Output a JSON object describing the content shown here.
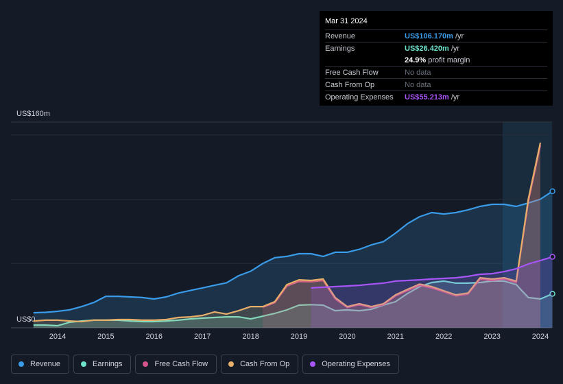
{
  "chart_data": {
    "type": "area",
    "ylim": [
      0,
      160
    ],
    "yticks": [
      {
        "value": 0,
        "label": "US$0"
      },
      {
        "value": 160,
        "label": "US$160m"
      }
    ],
    "ygrid": [
      50,
      100,
      150
    ],
    "xlim": [
      2013.5,
      2024.25
    ],
    "xticks": [
      2014,
      2015,
      2016,
      2017,
      2018,
      2019,
      2020,
      2021,
      2022,
      2023,
      2024
    ],
    "x": [
      2013.5,
      2013.75,
      2014,
      2014.25,
      2014.5,
      2014.75,
      2015,
      2015.25,
      2015.5,
      2015.75,
      2016,
      2016.25,
      2016.5,
      2016.75,
      2017,
      2017.25,
      2017.5,
      2017.75,
      2018,
      2018.25,
      2018.5,
      2018.75,
      2019,
      2019.25,
      2019.5,
      2019.75,
      2020,
      2020.25,
      2020.5,
      2020.75,
      2021,
      2021.25,
      2021.5,
      2021.75,
      2022,
      2022.25,
      2022.5,
      2022.75,
      2023,
      2023.25,
      2023.5,
      2023.75,
      2024,
      2024.25
    ],
    "series": [
      {
        "name": "Revenue",
        "color": "#3a9be8",
        "values": [
          11.7,
          12,
          12.8,
          14,
          16.5,
          19.7,
          24.5,
          24.5,
          24,
          23.5,
          22.4,
          24,
          27,
          29,
          31,
          33,
          35,
          40.5,
          44,
          50,
          54.5,
          55.5,
          57.6,
          57.6,
          55.5,
          58.7,
          58.7,
          61,
          64.5,
          67,
          73.6,
          81,
          86.4,
          89.6,
          88.5,
          89.6,
          91.7,
          94.4,
          96,
          96,
          94.4,
          97,
          100,
          106.17
        ]
      },
      {
        "name": "Earnings",
        "color": "#6de3cc",
        "values": [
          2.1,
          2.1,
          1.6,
          4.3,
          5.3,
          5.9,
          5.9,
          5.9,
          5.3,
          4.8,
          4.8,
          5.3,
          5.9,
          6.9,
          7.5,
          8,
          8.5,
          8.5,
          6.9,
          9,
          11.2,
          13.9,
          17.6,
          18,
          17.6,
          13.3,
          13.9,
          13.3,
          14.4,
          17.6,
          20.3,
          26.7,
          32,
          35.2,
          36.3,
          34.7,
          34.7,
          35.2,
          36.3,
          36.3,
          33.6,
          23.5,
          22.4,
          26.42
        ]
      },
      {
        "name": "Free Cash Flow",
        "color": "#d2548c",
        "values": [
          null,
          null,
          null,
          null,
          null,
          null,
          null,
          null,
          null,
          null,
          null,
          null,
          null,
          null,
          null,
          null,
          null,
          null,
          null,
          16,
          19.5,
          32.5,
          36,
          35.8,
          36.8,
          22.5,
          15.8,
          18,
          15.8,
          18,
          24.8,
          29,
          33,
          31,
          28,
          24.8,
          26.2,
          37.8,
          36.8,
          38,
          35.2,
          98,
          141.9,
          null
        ]
      },
      {
        "name": "Cash From Op",
        "color": "#e7ae6a",
        "values": [
          5.3,
          5.9,
          5.9,
          5.3,
          4.8,
          5.9,
          5.9,
          6.4,
          6.4,
          5.9,
          5.9,
          6.4,
          8,
          8.5,
          9.6,
          12.3,
          10.7,
          13.3,
          16.5,
          16.5,
          20.3,
          33.6,
          37.3,
          36.8,
          37.9,
          23.5,
          16.5,
          18.7,
          16.5,
          18.7,
          25.6,
          29.9,
          34,
          32,
          28.8,
          25.6,
          27,
          38.9,
          37.9,
          38.9,
          36.3,
          100,
          144,
          null
        ]
      },
      {
        "name": "Operating Expenses",
        "color": "#a855f7",
        "values": [
          null,
          null,
          null,
          null,
          null,
          null,
          null,
          null,
          null,
          null,
          null,
          null,
          null,
          null,
          null,
          null,
          null,
          null,
          null,
          null,
          null,
          null,
          null,
          31,
          31.5,
          32,
          32.5,
          33,
          34,
          34.7,
          36.3,
          36.8,
          37.3,
          37.9,
          38.4,
          38.9,
          40,
          41.6,
          42.1,
          43.7,
          45.9,
          49.6,
          52.3,
          55.213
        ]
      }
    ]
  },
  "tooltip": {
    "date": "Mar 31 2024",
    "rows": [
      {
        "label": "Revenue",
        "value": "US$106.170m",
        "unit": "/yr"
      },
      {
        "label": "Earnings",
        "value": "US$26.420m",
        "unit": "/yr"
      },
      {
        "value": "24.9%",
        "unit": "profit margin"
      },
      {
        "label": "Free Cash Flow",
        "value": "No data"
      },
      {
        "label": "Cash From Op",
        "value": "No data"
      },
      {
        "label": "Operating Expenses",
        "value": "US$55.213m",
        "unit": "/yr"
      }
    ]
  }
}
